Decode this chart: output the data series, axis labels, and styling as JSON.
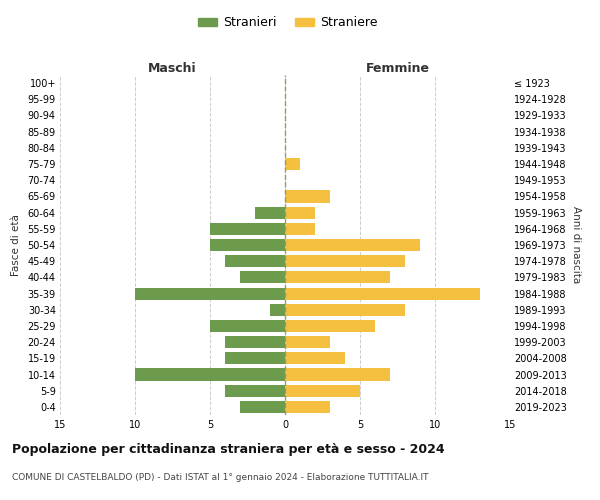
{
  "age_groups": [
    "100+",
    "95-99",
    "90-94",
    "85-89",
    "80-84",
    "75-79",
    "70-74",
    "65-69",
    "60-64",
    "55-59",
    "50-54",
    "45-49",
    "40-44",
    "35-39",
    "30-34",
    "25-29",
    "20-24",
    "15-19",
    "10-14",
    "5-9",
    "0-4"
  ],
  "birth_years": [
    "≤ 1923",
    "1924-1928",
    "1929-1933",
    "1934-1938",
    "1939-1943",
    "1944-1948",
    "1949-1953",
    "1954-1958",
    "1959-1963",
    "1964-1968",
    "1969-1973",
    "1974-1978",
    "1979-1983",
    "1984-1988",
    "1989-1993",
    "1994-1998",
    "1999-2003",
    "2004-2008",
    "2009-2013",
    "2014-2018",
    "2019-2023"
  ],
  "maschi": [
    0,
    0,
    0,
    0,
    0,
    0,
    0,
    0,
    2,
    5,
    5,
    4,
    3,
    10,
    1,
    5,
    4,
    4,
    10,
    4,
    3
  ],
  "femmine": [
    0,
    0,
    0,
    0,
    0,
    1,
    0,
    3,
    2,
    2,
    9,
    8,
    7,
    13,
    8,
    6,
    3,
    4,
    7,
    5,
    3
  ],
  "maschi_color": "#6d9b4e",
  "femmine_color": "#f5c040",
  "title": "Popolazione per cittadinanza straniera per età e sesso - 2024",
  "subtitle": "COMUNE DI CASTELBALDO (PD) - Dati ISTAT al 1° gennaio 2024 - Elaborazione TUTTITALIA.IT",
  "xlabel_left": "Maschi",
  "xlabel_right": "Femmine",
  "ylabel_left": "Fasce di età",
  "ylabel_right": "Anni di nascita",
  "legend_stranieri": "Stranieri",
  "legend_straniere": "Straniere",
  "xlim": 15,
  "bg_color": "#ffffff",
  "grid_color": "#cccccc",
  "center_line_color": "#999966"
}
